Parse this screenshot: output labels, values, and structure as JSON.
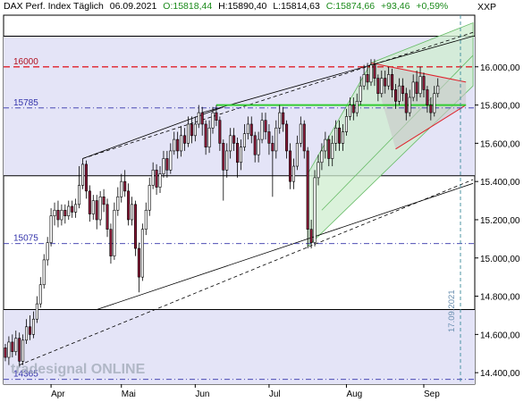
{
  "header": {
    "instrument": "DAX Perf. Index Täglich",
    "date": "06.09.2021",
    "open": "O:15818,44",
    "high": "H:15890,40",
    "low": "L:15814,63",
    "close": "C:15874,66",
    "change": "+93,46",
    "change_pct": "+0,59%",
    "currency": "XXP"
  },
  "watermark": "tradesignal ONLINE",
  "date_marker": "17.09.2021",
  "colors": {
    "band": "#e4e4f7",
    "up": "#ffffff",
    "down": "#8a1a38",
    "red_level": "#e0202a",
    "green_level": "#33cc33",
    "blue_level": "#3333aa",
    "channel_fill": "#cfeecf",
    "triangle_fill": "#c8c8c8"
  },
  "chart_data": {
    "type": "candlestick",
    "y_axis": {
      "ylim": [
        14340,
        16270
      ],
      "ticks": [
        14400,
        14600,
        14800,
        15000,
        15200,
        15400,
        15600,
        15800,
        16000
      ],
      "tick_labels": [
        "14.400,00",
        "14.600,00",
        "14.800,00",
        "15.000,00",
        "15.200,00",
        "15.400,00",
        "15.600,00",
        "15.800,00",
        "16.000,00"
      ]
    },
    "x_axis": {
      "months": [
        {
          "label": "Apr",
          "index": 13
        },
        {
          "label": "Mai",
          "index": 33
        },
        {
          "label": "Jun",
          "index": 54
        },
        {
          "label": "Jul",
          "index": 75
        },
        {
          "label": "Aug",
          "index": 97
        },
        {
          "label": "Sep",
          "index": 119
        }
      ],
      "total_slots": 134
    },
    "levels": [
      {
        "label": "16000",
        "value": 16000,
        "style": "red-dashed"
      },
      {
        "label": "15785",
        "value": 15785,
        "style": "blue-dashdot"
      },
      {
        "label": "15075",
        "value": 15075,
        "style": "blue-dashdot"
      },
      {
        "label": "14365",
        "value": 14365,
        "style": "blue-dashdot"
      }
    ],
    "horizontal_lines": [
      16160,
      15430,
      14730
    ],
    "shaded_bands": [
      [
        15430,
        16160
      ],
      [
        14340,
        14730
      ]
    ],
    "green_line": {
      "value": 15800,
      "from_index": 60,
      "to_index": 131
    },
    "candles": [
      [
        0,
        14530,
        14480,
        14550,
        14460
      ],
      [
        1,
        14480,
        14560,
        14590,
        14440
      ],
      [
        2,
        14560,
        14510,
        14600,
        14480
      ],
      [
        3,
        14510,
        14580,
        14620,
        14490
      ],
      [
        4,
        14580,
        14460,
        14610,
        14430
      ],
      [
        5,
        14460,
        14570,
        14600,
        14440
      ],
      [
        6,
        14570,
        14640,
        14680,
        14550
      ],
      [
        7,
        14640,
        14600,
        14700,
        14570
      ],
      [
        8,
        14600,
        14680,
        14720,
        14580
      ],
      [
        9,
        14680,
        14760,
        14800,
        14660
      ],
      [
        10,
        14760,
        14860,
        14900,
        14740
      ],
      [
        11,
        14860,
        14990,
        15020,
        14840
      ],
      [
        12,
        14990,
        15080,
        15110,
        14960
      ],
      [
        13,
        15080,
        15220,
        15260,
        15060
      ],
      [
        14,
        15220,
        15250,
        15290,
        15170
      ],
      [
        15,
        15250,
        15200,
        15300,
        15160
      ],
      [
        16,
        15200,
        15250,
        15280,
        15170
      ],
      [
        17,
        15250,
        15220,
        15280,
        15180
      ],
      [
        18,
        15220,
        15270,
        15300,
        15200
      ],
      [
        19,
        15270,
        15240,
        15300,
        15210
      ],
      [
        20,
        15240,
        15280,
        15310,
        15210
      ],
      [
        21,
        15280,
        15380,
        15480,
        15260
      ],
      [
        22,
        15380,
        15490,
        15520,
        15360
      ],
      [
        23,
        15490,
        15350,
        15510,
        15310
      ],
      [
        24,
        15350,
        15230,
        15380,
        15190
      ],
      [
        25,
        15230,
        15300,
        15330,
        15200
      ],
      [
        26,
        15300,
        15200,
        15330,
        15150
      ],
      [
        27,
        15200,
        15320,
        15350,
        15170
      ],
      [
        28,
        15320,
        15280,
        15360,
        15240
      ],
      [
        29,
        15280,
        15150,
        15310,
        15110
      ],
      [
        30,
        15150,
        15010,
        15180,
        14970
      ],
      [
        31,
        15010,
        15250,
        15290,
        14990
      ],
      [
        32,
        15250,
        15320,
        15370,
        15220
      ],
      [
        33,
        15320,
        15400,
        15440,
        15290
      ],
      [
        34,
        15400,
        15350,
        15460,
        15320
      ],
      [
        35,
        15350,
        15200,
        15390,
        15170
      ],
      [
        36,
        15200,
        15280,
        15320,
        15170
      ],
      [
        37,
        15280,
        15050,
        15300,
        15010
      ],
      [
        38,
        15050,
        14900,
        15080,
        14820
      ],
      [
        39,
        14900,
        15150,
        15180,
        14880
      ],
      [
        40,
        15150,
        15250,
        15290,
        15120
      ],
      [
        41,
        15250,
        15380,
        15420,
        15220
      ],
      [
        42,
        15380,
        15460,
        15500,
        15360
      ],
      [
        43,
        15460,
        15370,
        15490,
        15330
      ],
      [
        44,
        15370,
        15440,
        15480,
        15340
      ],
      [
        45,
        15440,
        15520,
        15560,
        15420
      ],
      [
        46,
        15520,
        15460,
        15560,
        15420
      ],
      [
        47,
        15460,
        15560,
        15600,
        15440
      ],
      [
        48,
        15560,
        15620,
        15660,
        15540
      ],
      [
        49,
        15620,
        15560,
        15660,
        15520
      ],
      [
        50,
        15560,
        15640,
        15690,
        15530
      ],
      [
        51,
        15640,
        15600,
        15680,
        15560
      ],
      [
        52,
        15600,
        15700,
        15740,
        15580
      ],
      [
        53,
        15700,
        15640,
        15740,
        15600
      ],
      [
        54,
        15640,
        15700,
        15740,
        15610
      ],
      [
        55,
        15700,
        15760,
        15800,
        15680
      ],
      [
        56,
        15760,
        15700,
        15790,
        15640
      ],
      [
        57,
        15700,
        15580,
        15720,
        15540
      ],
      [
        58,
        15580,
        15680,
        15720,
        15550
      ],
      [
        59,
        15680,
        15760,
        15790,
        15650
      ],
      [
        60,
        15760,
        15720,
        15800,
        15690
      ],
      [
        61,
        15720,
        15600,
        15740,
        15560
      ],
      [
        62,
        15600,
        15460,
        15620,
        15300
      ],
      [
        63,
        15460,
        15560,
        15600,
        15420
      ],
      [
        64,
        15560,
        15640,
        15680,
        15520
      ],
      [
        65,
        15640,
        15600,
        15680,
        15560
      ],
      [
        66,
        15600,
        15500,
        15630,
        15420
      ],
      [
        67,
        15500,
        15580,
        15620,
        15460
      ],
      [
        68,
        15580,
        15650,
        15700,
        15560
      ],
      [
        69,
        15650,
        15700,
        15740,
        15620
      ],
      [
        70,
        15700,
        15640,
        15740,
        15600
      ],
      [
        71,
        15640,
        15540,
        15660,
        15500
      ],
      [
        72,
        15540,
        15620,
        15660,
        15500
      ],
      [
        73,
        15620,
        15720,
        15760,
        15600
      ],
      [
        74,
        15720,
        15660,
        15760,
        15620
      ],
      [
        75,
        15660,
        15600,
        15700,
        15540
      ],
      [
        76,
        15600,
        15560,
        15640,
        15320
      ],
      [
        77,
        15560,
        15680,
        15720,
        15520
      ],
      [
        78,
        15680,
        15760,
        15800,
        15650
      ],
      [
        79,
        15760,
        15700,
        15790,
        15660
      ],
      [
        80,
        15700,
        15560,
        15720,
        15520
      ],
      [
        81,
        15560,
        15400,
        15600,
        15360
      ],
      [
        82,
        15400,
        15480,
        15520,
        15360
      ],
      [
        83,
        15480,
        15600,
        15640,
        15460
      ],
      [
        84,
        15600,
        15700,
        15740,
        15580
      ],
      [
        85,
        15700,
        15560,
        15720,
        15520
      ],
      [
        86,
        15560,
        15150,
        15580,
        15050
      ],
      [
        87,
        15150,
        15080,
        15200,
        15050
      ],
      [
        88,
        15080,
        15420,
        15460,
        15060
      ],
      [
        89,
        15420,
        15500,
        15540,
        15380
      ],
      [
        90,
        15500,
        15560,
        15600,
        15460
      ],
      [
        91,
        15560,
        15620,
        15660,
        15520
      ],
      [
        92,
        15620,
        15520,
        15640,
        15480
      ],
      [
        93,
        15520,
        15600,
        15640,
        15480
      ],
      [
        94,
        15600,
        15680,
        15720,
        15560
      ],
      [
        95,
        15680,
        15600,
        15720,
        15560
      ],
      [
        96,
        15600,
        15660,
        15700,
        15560
      ],
      [
        97,
        15660,
        15740,
        15780,
        15640
      ],
      [
        98,
        15740,
        15800,
        15840,
        15720
      ],
      [
        99,
        15800,
        15760,
        15840,
        15720
      ],
      [
        100,
        15760,
        15820,
        15860,
        15740
      ],
      [
        101,
        15820,
        15900,
        15950,
        15800
      ],
      [
        102,
        15900,
        15960,
        16010,
        15880
      ],
      [
        103,
        15960,
        15920,
        16020,
        15880
      ],
      [
        104,
        15920,
        16010,
        16040,
        15900
      ],
      [
        105,
        16010,
        15940,
        16040,
        15900
      ],
      [
        106,
        15940,
        15860,
        15960,
        15820
      ],
      [
        107,
        15860,
        15940,
        15980,
        15840
      ],
      [
        108,
        15940,
        15900,
        15980,
        15860
      ],
      [
        109,
        15900,
        15960,
        16000,
        15880
      ],
      [
        110,
        15960,
        15880,
        15990,
        15840
      ],
      [
        111,
        15880,
        15820,
        15910,
        15780
      ],
      [
        112,
        15820,
        15900,
        15940,
        15800
      ],
      [
        113,
        15900,
        15860,
        15940,
        15820
      ],
      [
        114,
        15860,
        15760,
        15890,
        15720
      ],
      [
        115,
        15760,
        15840,
        15880,
        15740
      ],
      [
        116,
        15840,
        15920,
        15960,
        15820
      ],
      [
        117,
        15920,
        15860,
        15980,
        15820
      ],
      [
        118,
        15860,
        15950,
        16000,
        15840
      ],
      [
        119,
        15950,
        15880,
        15970,
        15840
      ],
      [
        120,
        15880,
        15800,
        15900,
        15760
      ],
      [
        121,
        15800,
        15760,
        15840,
        15720
      ],
      [
        122,
        15760,
        15860,
        15900,
        15740
      ],
      [
        123,
        15860,
        15900,
        15940,
        15840
      ]
    ]
  }
}
